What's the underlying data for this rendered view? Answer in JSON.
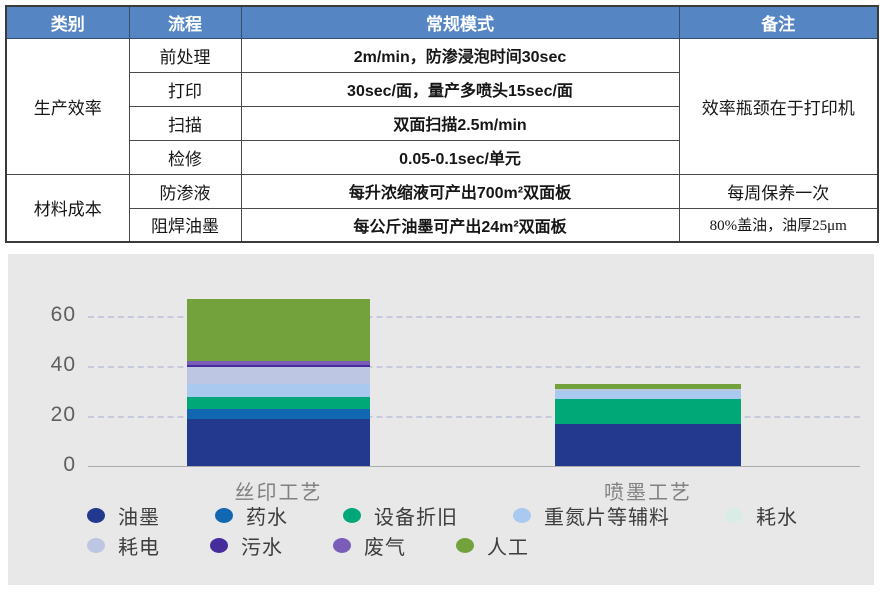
{
  "table": {
    "headers": [
      "类别",
      "流程",
      "常规模式",
      "备注"
    ],
    "groups": [
      {
        "category": "生产效率",
        "remark": "效率瓶颈在于打印机"
      },
      {
        "category": "材料成本"
      }
    ],
    "rows": [
      {
        "process": "前处理",
        "value": "2m/min，防渗浸泡时间30sec"
      },
      {
        "process": "打印",
        "value": "30sec/面，量产多喷头15sec/面"
      },
      {
        "process": "扫描",
        "value": "双面扫描2.5m/min"
      },
      {
        "process": "检修",
        "value": "0.05-0.1sec/单元"
      },
      {
        "process": "防渗液",
        "value": "每升浓缩液可产出700m²双面板",
        "remark": "每周保养一次"
      },
      {
        "process": "阻焊油墨",
        "value": "每公斤油墨可产出24m²双面板",
        "remark": "80%盖油，油厚25μm"
      }
    ]
  },
  "chart_data": {
    "type": "bar",
    "stacked": true,
    "categories": [
      "丝印工艺",
      "喷墨工艺"
    ],
    "series": [
      {
        "name": "油墨",
        "color": "#23398e",
        "values": [
          19,
          17
        ]
      },
      {
        "name": "药水",
        "color": "#1167b1",
        "values": [
          4,
          0
        ]
      },
      {
        "name": "设备折旧",
        "color": "#00a878",
        "values": [
          4.5,
          10
        ]
      },
      {
        "name": "重氮片等辅料",
        "color": "#a9c9ef",
        "values": [
          5.5,
          3
        ]
      },
      {
        "name": "耗水",
        "color": "#d9ede6",
        "values": [
          0,
          0
        ]
      },
      {
        "name": "耗电",
        "color": "#bdc6e2",
        "values": [
          6.5,
          1
        ]
      },
      {
        "name": "污水",
        "color": "#472d9c",
        "values": [
          1,
          0
        ]
      },
      {
        "name": "废气",
        "color": "#7a5db8",
        "values": [
          1.5,
          0
        ]
      },
      {
        "name": "人工",
        "color": "#73a23d",
        "values": [
          25,
          2
        ]
      }
    ],
    "totals": [
      67,
      33
    ],
    "yticks": [
      0,
      20,
      40,
      60
    ],
    "ylim": [
      0,
      70
    ],
    "grid": "dashed-horizontal",
    "legend_position": "bottom",
    "legend_rows": [
      [
        "油墨",
        "药水",
        "设备折旧",
        "重氮片等辅料",
        "耗水"
      ],
      [
        "耗电",
        "污水",
        "废气",
        "人工"
      ]
    ]
  },
  "colors": {
    "table_header_bg": "#5586c3",
    "table_header_text": "#ffffff",
    "table_border": "#4a4a4a",
    "chart_panel_bg": "#e8e8e8",
    "gridline": "#c7c9dd",
    "axis_text": "#5f5f5f",
    "category_text": "#818181",
    "legend_text": "#3d3d3d"
  }
}
